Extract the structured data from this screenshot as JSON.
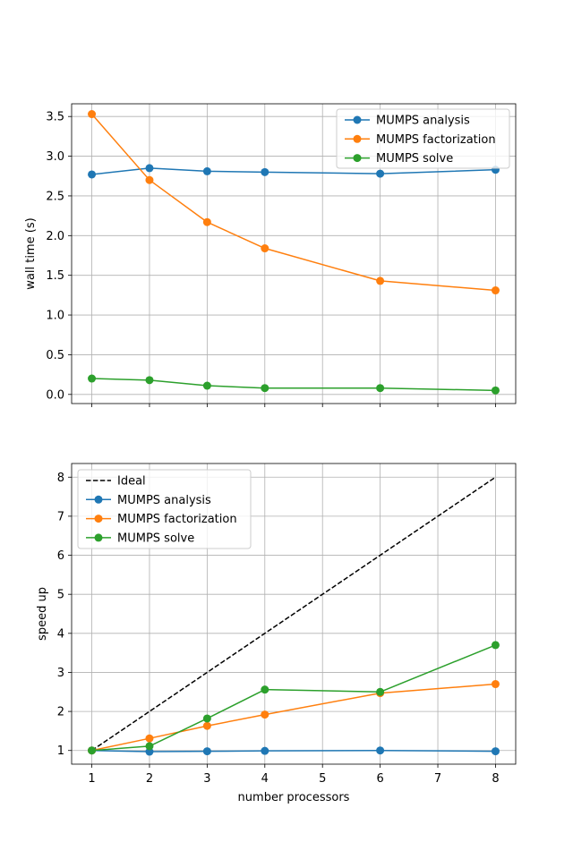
{
  "chart_data": [
    {
      "type": "line",
      "title": "",
      "xlabel": "",
      "ylabel": "wall time (s)",
      "x": [
        1,
        2,
        3,
        4,
        6,
        8
      ],
      "xlim": [
        0.65,
        8.35
      ],
      "ylim": [
        -0.115,
        3.66
      ],
      "xticks": [
        1,
        2,
        3,
        4,
        5,
        6,
        7,
        8
      ],
      "yticks": [
        0.0,
        0.5,
        1.0,
        1.5,
        2.0,
        2.5,
        3.0,
        3.5
      ],
      "ytick_labels": [
        "0.0",
        "0.5",
        "1.0",
        "1.5",
        "2.0",
        "2.5",
        "3.0",
        "3.5"
      ],
      "show_xtick_labels": false,
      "grid": true,
      "legend_position": "upper right",
      "series": [
        {
          "name": "MUMPS analysis",
          "color": "#1f77b4",
          "style": "solid",
          "marker": "circle",
          "values": [
            2.77,
            2.85,
            2.81,
            2.8,
            2.78,
            2.83
          ]
        },
        {
          "name": "MUMPS factorization",
          "color": "#ff7f0e",
          "style": "solid",
          "marker": "circle",
          "values": [
            3.53,
            2.7,
            2.17,
            1.84,
            1.43,
            1.31
          ]
        },
        {
          "name": "MUMPS solve",
          "color": "#2ca02c",
          "style": "solid",
          "marker": "circle",
          "values": [
            0.2,
            0.18,
            0.11,
            0.08,
            0.08,
            0.05
          ]
        }
      ]
    },
    {
      "type": "line",
      "title": "",
      "xlabel": "number processors",
      "ylabel": "speed up",
      "x": [
        1,
        2,
        3,
        4,
        6,
        8
      ],
      "xlim": [
        0.65,
        8.35
      ],
      "ylim": [
        0.65,
        8.35
      ],
      "xticks": [
        1,
        2,
        3,
        4,
        5,
        6,
        7,
        8
      ],
      "xtick_labels": [
        "1",
        "2",
        "3",
        "4",
        "5",
        "6",
        "7",
        "8"
      ],
      "yticks": [
        1,
        2,
        3,
        4,
        5,
        6,
        7,
        8
      ],
      "ytick_labels": [
        "1",
        "2",
        "3",
        "4",
        "5",
        "6",
        "7",
        "8"
      ],
      "show_xtick_labels": true,
      "grid": true,
      "legend_position": "upper left",
      "series": [
        {
          "name": "Ideal",
          "color": "#000000",
          "style": "dashed",
          "marker": "none",
          "x": [
            1,
            8
          ],
          "values": [
            1,
            8
          ]
        },
        {
          "name": "MUMPS analysis",
          "color": "#1f77b4",
          "style": "solid",
          "marker": "circle",
          "values": [
            1.0,
            0.97,
            0.98,
            0.99,
            1.0,
            0.98
          ]
        },
        {
          "name": "MUMPS factorization",
          "color": "#ff7f0e",
          "style": "solid",
          "marker": "circle",
          "values": [
            1.0,
            1.31,
            1.63,
            1.92,
            2.47,
            2.7
          ]
        },
        {
          "name": "MUMPS solve",
          "color": "#2ca02c",
          "style": "solid",
          "marker": "circle",
          "values": [
            1.0,
            1.11,
            1.82,
            2.56,
            2.5,
            3.7
          ]
        }
      ]
    }
  ]
}
